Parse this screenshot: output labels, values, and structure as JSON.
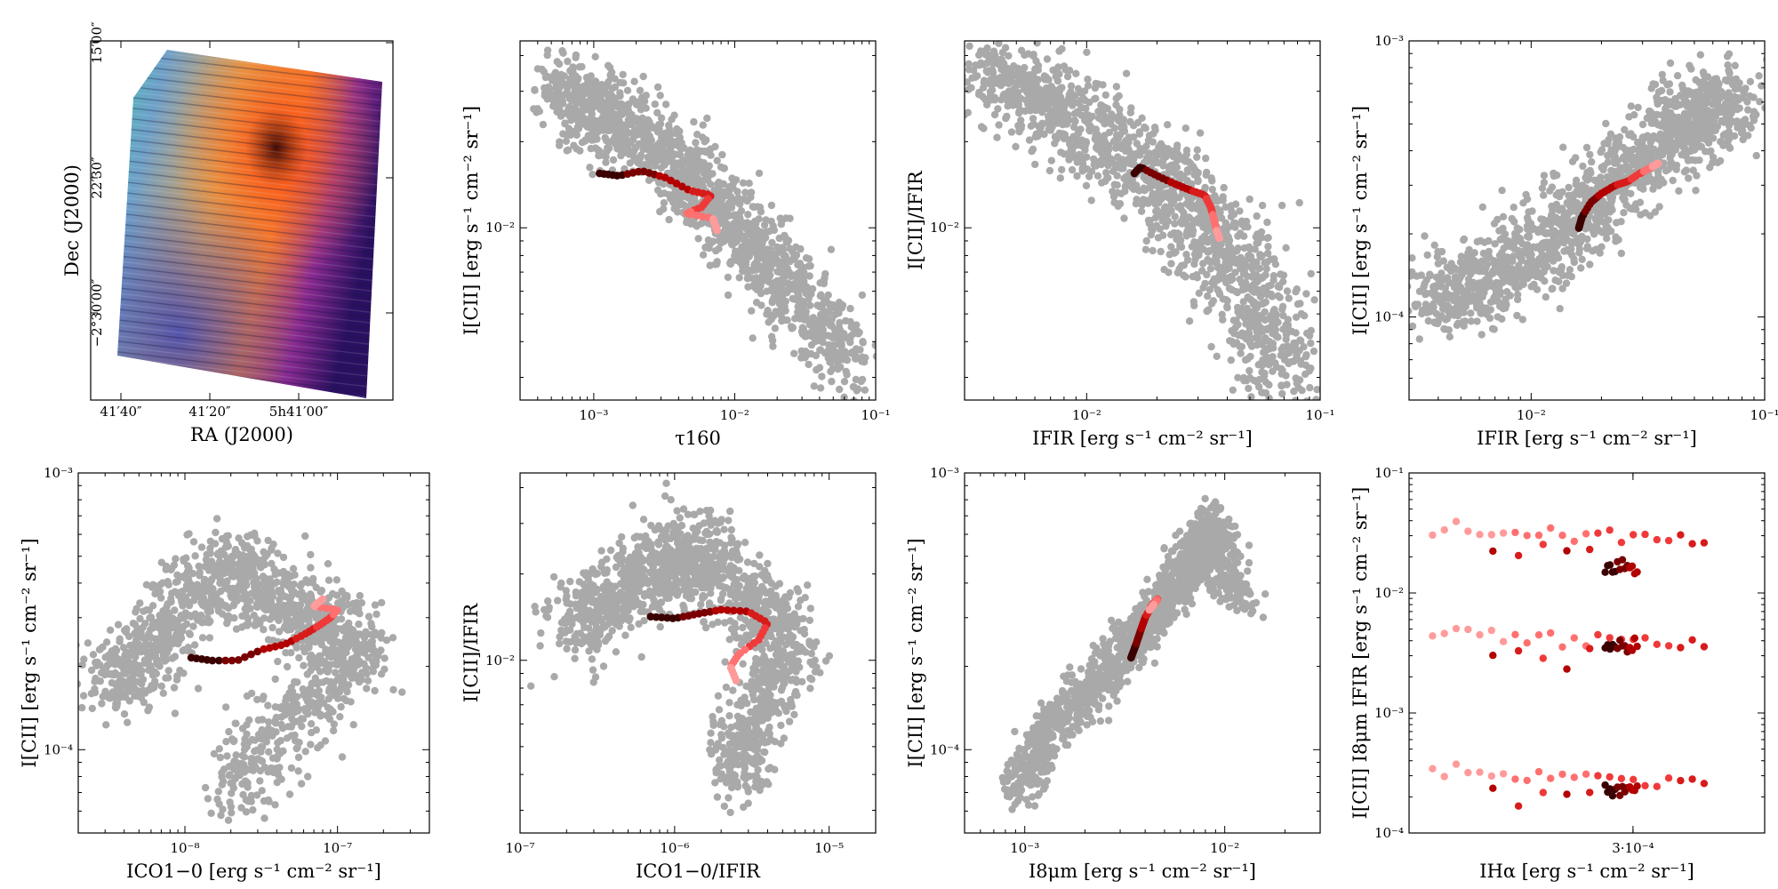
{
  "figure": {
    "panels": 8,
    "bg_point_color": "#a9a9a9",
    "track_colors": [
      "#3b0000",
      "#7a0000",
      "#b30000",
      "#d81b1b",
      "#f03a3a",
      "#ff7070",
      "#ff9b9b"
    ]
  },
  "image_panel": {
    "ra_ticks": [
      "41′40″",
      "41′20″",
      "5h41′00″"
    ],
    "dec_ticks": [
      "15′00″",
      "22′30″",
      "−2°30′00″"
    ],
    "xlabel": "RA (J2000)",
    "ylabel": "Dec (J2000)"
  },
  "chart_data": [
    {
      "id": "p2",
      "type": "scatter",
      "xscale": "log",
      "yscale": "log",
      "xlim": [
        0.0003,
        0.1
      ],
      "ylim": [
        0.0025,
        0.045
      ],
      "xticks": [
        0.001,
        0.01,
        0.1
      ],
      "xtick_labels": [
        "10⁻³",
        "10⁻²",
        "10⁻¹"
      ],
      "yticks": [
        0.01
      ],
      "ytick_labels": [
        "10⁻²"
      ],
      "xlabel": "τ160",
      "ylabel": "I[CII] [erg s⁻¹ cm⁻² sr⁻¹]",
      "cloud": [
        [
          0.0005,
          0.03
        ],
        [
          0.001,
          0.025
        ],
        [
          0.002,
          0.022
        ],
        [
          0.004,
          0.016
        ],
        [
          0.008,
          0.012
        ],
        [
          0.015,
          0.008
        ],
        [
          0.03,
          0.0055
        ],
        [
          0.065,
          0.0032
        ]
      ],
      "cloud_spread": 0.42,
      "track": [
        [
          0.0011,
          0.0155
        ],
        [
          0.0015,
          0.0152
        ],
        [
          0.0022,
          0.0158
        ],
        [
          0.0032,
          0.015
        ],
        [
          0.0048,
          0.0135
        ],
        [
          0.0068,
          0.013
        ],
        [
          0.0058,
          0.0118
        ],
        [
          0.0045,
          0.0112
        ],
        [
          0.007,
          0.0108
        ],
        [
          0.0075,
          0.0098
        ]
      ]
    },
    {
      "id": "p3",
      "type": "scatter",
      "xscale": "log",
      "yscale": "log",
      "xlim": [
        0.003,
        0.1
      ],
      "ylim": [
        0.0025,
        0.045
      ],
      "xticks": [
        0.01,
        0.1
      ],
      "xtick_labels": [
        "10⁻²",
        "10⁻¹"
      ],
      "yticks": [
        0.01
      ],
      "ytick_labels": [
        "10⁻²"
      ],
      "xlabel": "IFIR [erg s⁻¹ cm⁻² sr⁻¹]",
      "ylabel": "I[CII]/IFIR",
      "cloud": [
        [
          0.0035,
          0.035
        ],
        [
          0.006,
          0.03
        ],
        [
          0.01,
          0.022
        ],
        [
          0.018,
          0.016
        ],
        [
          0.028,
          0.012
        ],
        [
          0.04,
          0.008
        ],
        [
          0.055,
          0.005
        ],
        [
          0.065,
          0.0032
        ]
      ],
      "cloud_spread": 0.42,
      "track": [
        [
          0.016,
          0.0155
        ],
        [
          0.017,
          0.0163
        ],
        [
          0.02,
          0.0152
        ],
        [
          0.024,
          0.0142
        ],
        [
          0.028,
          0.0135
        ],
        [
          0.032,
          0.013
        ],
        [
          0.034,
          0.0118
        ],
        [
          0.035,
          0.0108
        ],
        [
          0.036,
          0.0098
        ],
        [
          0.037,
          0.0092
        ]
      ]
    },
    {
      "id": "p4",
      "type": "scatter",
      "xscale": "log",
      "yscale": "log",
      "xlim": [
        0.003,
        0.1
      ],
      "ylim": [
        5e-05,
        0.001
      ],
      "xticks": [
        0.01,
        0.1
      ],
      "xtick_labels": [
        "10⁻²",
        "10⁻¹"
      ],
      "yticks": [
        0.0001,
        0.001
      ],
      "ytick_labels": [
        "10⁻⁴",
        "10⁻³"
      ],
      "xlabel": "IFIR [erg s⁻¹ cm⁻² sr⁻¹]",
      "ylabel": "I[CII] [erg s⁻¹ cm⁻² sr⁻¹]",
      "cloud": [
        [
          0.0035,
          0.00011
        ],
        [
          0.006,
          0.00013
        ],
        [
          0.01,
          0.00017
        ],
        [
          0.016,
          0.00023
        ],
        [
          0.025,
          0.00032
        ],
        [
          0.04,
          0.00045
        ],
        [
          0.055,
          0.00055
        ],
        [
          0.068,
          0.00062
        ]
      ],
      "cloud_spread": 0.4,
      "track": [
        [
          0.016,
          0.00021
        ],
        [
          0.0165,
          0.00023
        ],
        [
          0.018,
          0.00026
        ],
        [
          0.02,
          0.00028
        ],
        [
          0.023,
          0.0003
        ],
        [
          0.026,
          0.00031
        ],
        [
          0.029,
          0.00033
        ],
        [
          0.031,
          0.00034
        ],
        [
          0.033,
          0.00035
        ],
        [
          0.035,
          0.00036
        ]
      ]
    },
    {
      "id": "p5",
      "type": "scatter",
      "xscale": "log",
      "yscale": "log",
      "xlim": [
        2e-09,
        4e-07
      ],
      "ylim": [
        5e-05,
        0.001
      ],
      "xticks": [
        1e-08,
        1e-07
      ],
      "xtick_labels": [
        "10⁻⁸",
        "10⁻⁷"
      ],
      "yticks": [
        0.0001,
        0.001
      ],
      "ytick_labels": [
        "10⁻⁴",
        "10⁻³"
      ],
      "xlabel": "ICO1−0 [erg s⁻¹ cm⁻² sr⁻¹]",
      "ylabel": "I[CII] [erg s⁻¹ cm⁻² sr⁻¹]",
      "cloud": [
        [
          3e-09,
          0.00017
        ],
        [
          6e-09,
          0.00022
        ],
        [
          1e-08,
          0.00035
        ],
        [
          2e-08,
          0.00045
        ],
        [
          4e-08,
          0.00035
        ],
        [
          8e-08,
          0.00027
        ],
        [
          1.5e-07,
          0.00022
        ],
        [
          4e-08,
          0.00012
        ],
        [
          2e-08,
          7e-05
        ]
      ],
      "cloud_spread": 0.45,
      "track": [
        [
          1.1e-08,
          0.000215
        ],
        [
          1.5e-08,
          0.00021
        ],
        [
          2.2e-08,
          0.00021
        ],
        [
          3.2e-08,
          0.00023
        ],
        [
          4.5e-08,
          0.00024
        ],
        [
          6e-08,
          0.00026
        ],
        [
          7.5e-08,
          0.00028
        ],
        [
          9e-08,
          0.0003
        ],
        [
          1e-07,
          0.00032
        ],
        [
          7e-08,
          0.00033
        ],
        [
          8e-08,
          0.00035
        ]
      ]
    },
    {
      "id": "p6",
      "type": "scatter",
      "xscale": "log",
      "yscale": "log",
      "xlim": [
        1e-07,
        2e-05
      ],
      "ylim": [
        0.0025,
        0.045
      ],
      "xticks": [
        1e-07,
        1e-06,
        1e-05
      ],
      "xtick_labels": [
        "10⁻⁷",
        "10⁻⁶",
        "10⁻⁵"
      ],
      "yticks": [
        0.01
      ],
      "ytick_labels": [
        "10⁻²"
      ],
      "xlabel": "ICO1−0/IFIR",
      "ylabel": "I[CII]/IFIR",
      "cloud": [
        [
          2e-07,
          0.013
        ],
        [
          4e-07,
          0.016
        ],
        [
          7e-07,
          0.02
        ],
        [
          1.2e-06,
          0.024
        ],
        [
          2e-06,
          0.02
        ],
        [
          3.5e-06,
          0.015
        ],
        [
          6e-06,
          0.011
        ],
        [
          3e-06,
          0.006
        ],
        [
          2.5e-06,
          0.004
        ]
      ],
      "cloud_spread": 0.42,
      "track": [
        [
          7e-07,
          0.0142
        ],
        [
          1e-06,
          0.014
        ],
        [
          1.4e-06,
          0.0145
        ],
        [
          2e-06,
          0.015
        ],
        [
          3e-06,
          0.0148
        ],
        [
          4e-06,
          0.0135
        ],
        [
          3.5e-06,
          0.0118
        ],
        [
          2.6e-06,
          0.0105
        ],
        [
          2.3e-06,
          0.0095
        ],
        [
          2.5e-06,
          0.0085
        ]
      ]
    },
    {
      "id": "p7",
      "type": "scatter",
      "xscale": "log",
      "yscale": "log",
      "xlim": [
        0.0005,
        0.03
      ],
      "ylim": [
        5e-05,
        0.001
      ],
      "xticks": [
        0.001,
        0.01
      ],
      "xtick_labels": [
        "10⁻³",
        "10⁻²"
      ],
      "yticks": [
        0.0001,
        0.001
      ],
      "ytick_labels": [
        "10⁻⁴",
        "10⁻³"
      ],
      "xlabel": "I8μm [erg s⁻¹ cm⁻² sr⁻¹]",
      "ylabel": "I[CII] [erg s⁻¹ cm⁻² sr⁻¹]",
      "cloud": [
        [
          0.0009,
          7e-05
        ],
        [
          0.0015,
          0.00013
        ],
        [
          0.0025,
          0.00019
        ],
        [
          0.004,
          0.00028
        ],
        [
          0.006,
          0.0004
        ],
        [
          0.008,
          0.00055
        ],
        [
          0.0085,
          0.00065
        ],
        [
          0.012,
          0.00033
        ]
      ],
      "cloud_spread": 0.22,
      "track": [
        [
          0.0034,
          0.000215
        ],
        [
          0.0036,
          0.00024
        ],
        [
          0.0038,
          0.00027
        ],
        [
          0.004,
          0.0003
        ],
        [
          0.0043,
          0.00033
        ],
        [
          0.0046,
          0.00035
        ],
        [
          0.0045,
          0.00034
        ],
        [
          0.0042,
          0.00032
        ]
      ]
    },
    {
      "id": "p8",
      "type": "scatter",
      "xscale": "log",
      "yscale": "log",
      "xlim": [
        0.00021,
        0.00037
      ],
      "ylim": [
        0.0001,
        0.1
      ],
      "xticks": [
        0.0003
      ],
      "xtick_labels": [
        "3·10⁻⁴"
      ],
      "yticks": [
        0.0001,
        0.001,
        0.01,
        0.1
      ],
      "ytick_labels": [
        "10⁻⁴",
        "10⁻³",
        "10⁻²",
        "10⁻¹"
      ],
      "xlabel": "IHα [erg s⁻¹ cm⁻² sr⁻¹]",
      "ylabel": "I[CII] I8μm IFIR [erg s⁻¹ cm⁻² sr⁻¹]",
      "bands": [
        {
          "y": 0.034,
          "dark_y": 0.016
        },
        {
          "y": 0.0046,
          "dark_y": 0.0036
        },
        {
          "y": 0.00033,
          "dark_y": 0.00023
        }
      ]
    }
  ]
}
